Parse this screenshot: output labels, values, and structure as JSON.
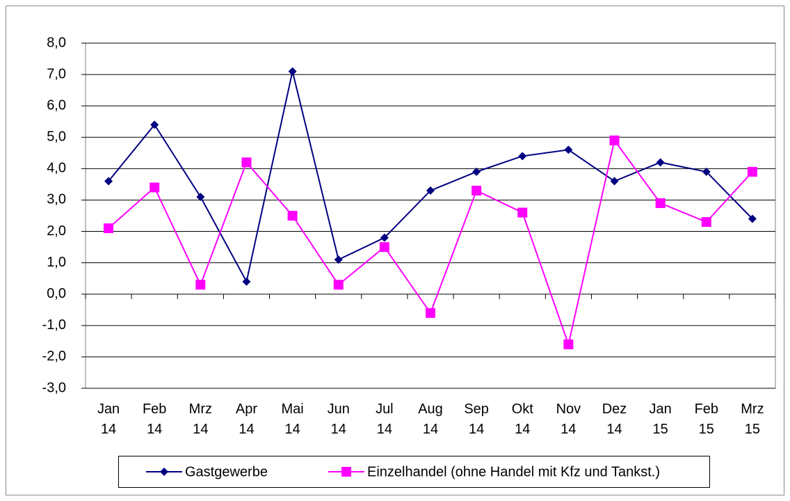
{
  "chart_data": {
    "type": "line",
    "categories": [
      "Jan 14",
      "Feb 14",
      "Mrz 14",
      "Apr 14",
      "Mai 14",
      "Jun 14",
      "Jul 14",
      "Aug 14",
      "Sep 14",
      "Okt 14",
      "Nov 14",
      "Dez 14",
      "Jan 15",
      "Feb 15",
      "Mrz 15"
    ],
    "series": [
      {
        "name": "Gastgewerbe",
        "color": "#000080",
        "marker": "diamond",
        "values": [
          3.6,
          5.4,
          3.1,
          0.4,
          7.1,
          1.1,
          1.8,
          3.3,
          3.9,
          4.4,
          4.6,
          3.6,
          4.2,
          3.9,
          2.4
        ]
      },
      {
        "name": "Einzelhandel (ohne Handel mit Kfz und Tankst.)",
        "color": "#ff00ff",
        "marker": "square",
        "values": [
          2.1,
          3.4,
          0.3,
          4.2,
          2.5,
          0.3,
          1.5,
          -0.6,
          3.3,
          2.6,
          -1.6,
          4.9,
          2.9,
          2.3,
          3.9
        ]
      }
    ],
    "ylim": [
      -3,
      8
    ],
    "yticks": [
      {
        "value": -3,
        "label": "-3,0"
      },
      {
        "value": -2,
        "label": "-2,0"
      },
      {
        "value": -1,
        "label": "-1,0"
      },
      {
        "value": 0,
        "label": "0,0"
      },
      {
        "value": 1,
        "label": "1,0"
      },
      {
        "value": 2,
        "label": "2,0"
      },
      {
        "value": 3,
        "label": "3,0"
      },
      {
        "value": 4,
        "label": "4,0"
      },
      {
        "value": 5,
        "label": "5,0"
      },
      {
        "value": 6,
        "label": "6,0"
      },
      {
        "value": 7,
        "label": "7,0"
      },
      {
        "value": 8,
        "label": "8,0"
      }
    ],
    "grid": true,
    "legend": "bottom"
  }
}
